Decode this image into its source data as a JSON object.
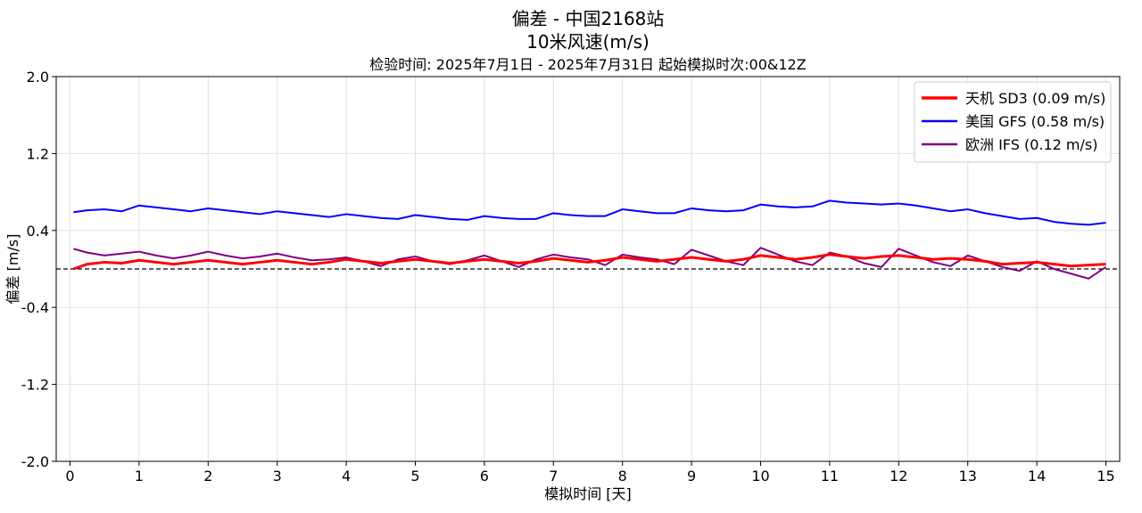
{
  "chart_data": {
    "type": "line",
    "title": "偏差 - 中国2168站",
    "subtitle": "10米风速(m/s)",
    "subtitle2": "检验时间: 2025年7月1日 - 2025年7月31日 起始模拟时次:00&12Z",
    "xlabel": "模拟时间 [天]",
    "ylabel": "偏差 [m/s]",
    "xlim": [
      -0.2,
      15.2
    ],
    "ylim": [
      -2.0,
      2.0
    ],
    "xticks": [
      0,
      1,
      2,
      3,
      4,
      5,
      6,
      7,
      8,
      9,
      10,
      11,
      12,
      13,
      14,
      15
    ],
    "yticks": [
      -2.0,
      -1.2,
      -0.4,
      0.4,
      1.2,
      2.0
    ],
    "ytick_labels": [
      "-2.0",
      "-1.2",
      "-0.4",
      "0.4",
      "1.2",
      "2.0"
    ],
    "grid": true,
    "zero_line": 0,
    "legend_position": "top-right",
    "x_step": 0.25,
    "x_start": 0,
    "series": [
      {
        "name": "天机 SD3 (0.09 m/s)",
        "color": "#ff0000",
        "width": 3,
        "values": [
          0.0,
          0.05,
          0.07,
          0.06,
          0.09,
          0.07,
          0.05,
          0.07,
          0.09,
          0.07,
          0.05,
          0.07,
          0.09,
          0.07,
          0.05,
          0.07,
          0.1,
          0.08,
          0.06,
          0.08,
          0.1,
          0.08,
          0.06,
          0.08,
          0.1,
          0.08,
          0.06,
          0.08,
          0.11,
          0.09,
          0.07,
          0.09,
          0.12,
          0.1,
          0.08,
          0.1,
          0.12,
          0.1,
          0.08,
          0.1,
          0.14,
          0.12,
          0.1,
          0.12,
          0.15,
          0.13,
          0.11,
          0.13,
          0.14,
          0.12,
          0.1,
          0.11,
          0.1,
          0.08,
          0.05,
          0.06,
          0.07,
          0.05,
          0.03,
          0.04,
          0.05
        ]
      },
      {
        "name": "美国 GFS (0.58 m/s)",
        "color": "#0000ff",
        "width": 2,
        "values": [
          0.59,
          0.61,
          0.62,
          0.6,
          0.66,
          0.64,
          0.62,
          0.6,
          0.63,
          0.61,
          0.59,
          0.57,
          0.6,
          0.58,
          0.56,
          0.54,
          0.57,
          0.55,
          0.53,
          0.52,
          0.56,
          0.54,
          0.52,
          0.51,
          0.55,
          0.53,
          0.52,
          0.52,
          0.58,
          0.56,
          0.55,
          0.55,
          0.62,
          0.6,
          0.58,
          0.58,
          0.63,
          0.61,
          0.6,
          0.61,
          0.67,
          0.65,
          0.64,
          0.65,
          0.71,
          0.69,
          0.68,
          0.67,
          0.68,
          0.66,
          0.63,
          0.6,
          0.62,
          0.58,
          0.55,
          0.52,
          0.53,
          0.49,
          0.47,
          0.46,
          0.48
        ]
      },
      {
        "name": "欧洲 IFS (0.12 m/s)",
        "color": "#800080",
        "width": 2,
        "values": [
          0.21,
          0.17,
          0.14,
          0.16,
          0.18,
          0.14,
          0.11,
          0.14,
          0.18,
          0.14,
          0.11,
          0.13,
          0.16,
          0.12,
          0.09,
          0.1,
          0.12,
          0.08,
          0.03,
          0.1,
          0.13,
          0.08,
          0.05,
          0.09,
          0.14,
          0.08,
          0.02,
          0.1,
          0.15,
          0.12,
          0.1,
          0.04,
          0.15,
          0.12,
          0.1,
          0.05,
          0.2,
          0.14,
          0.08,
          0.04,
          0.22,
          0.15,
          0.08,
          0.04,
          0.17,
          0.13,
          0.06,
          0.02,
          0.21,
          0.14,
          0.07,
          0.03,
          0.14,
          0.08,
          0.02,
          -0.02,
          0.08,
          0.0,
          -0.05,
          -0.1,
          0.02
        ]
      }
    ]
  }
}
